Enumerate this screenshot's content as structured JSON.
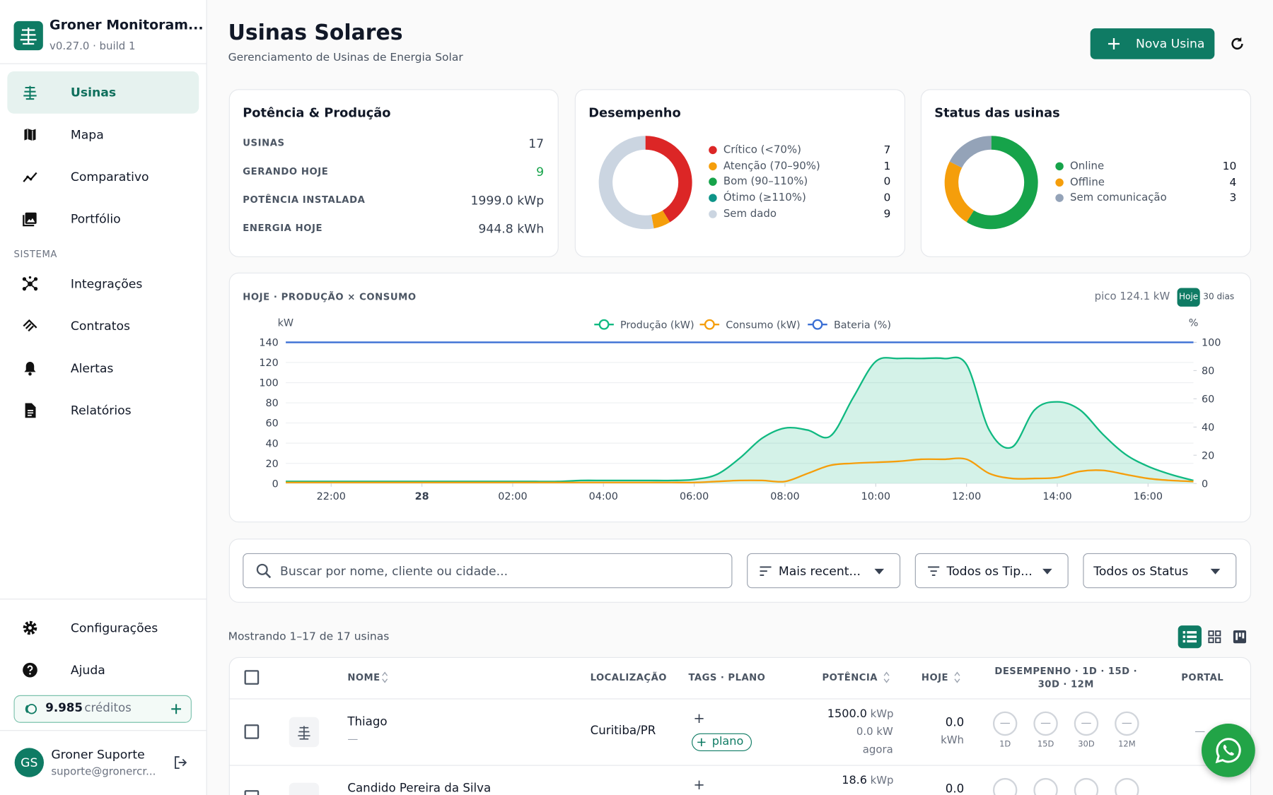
{
  "sidebar": {
    "app_name": "Groner Monitoram...",
    "version": "v0.27.0 · build 1",
    "nav": [
      "Usinas",
      "Mapa",
      "Comparativo",
      "Portfólio"
    ],
    "section": "SISTEMA",
    "system_nav": [
      "Integrações",
      "Contratos",
      "Alertas",
      "Relatórios"
    ],
    "bottom_nav": [
      "Configurações",
      "Ajuda"
    ],
    "credits": {
      "amount": "9.985",
      "label": "créditos"
    },
    "user": {
      "initials": "GS",
      "name": "Groner Suporte",
      "email": "suporte@gronercr..."
    }
  },
  "header": {
    "title": "Usinas Solares",
    "subtitle": "Gerenciamento de Usinas de Energia Solar",
    "button": "Nova Usina"
  },
  "power_card": {
    "title": "Potência & Produção",
    "rows": [
      {
        "label": "USINAS",
        "value": "17"
      },
      {
        "label": "GERANDO HOJE",
        "value": "9"
      },
      {
        "label": "POTÊNCIA INSTALADA",
        "value": "1999.0 kWp"
      },
      {
        "label": "ENERGIA HOJE",
        "value": "944.8 kWh"
      }
    ]
  },
  "performance_card": {
    "title": "Desempenho",
    "chart": {
      "type": "donut",
      "categories": [
        "Crítico (<70%)",
        "Atenção (70–90%)",
        "Bom (90–110%)",
        "Ótimo (≥110%)",
        "Sem dado"
      ],
      "values": [
        7,
        1,
        0,
        0,
        9
      ],
      "colors": [
        "#dc2626",
        "#f59e0b",
        "#16a34a",
        "#0d9488",
        "#cbd5e1"
      ]
    }
  },
  "status_card": {
    "title": "Status das usinas",
    "chart": {
      "type": "donut",
      "categories": [
        "Online",
        "Offline",
        "Sem comunicação"
      ],
      "values": [
        10,
        4,
        3
      ],
      "colors": [
        "#16a34a",
        "#f59e0b",
        "#94a3b8"
      ]
    }
  },
  "production_chart": {
    "type": "line",
    "title": "HOJE · PRODUÇÃO × CONSUMO",
    "peak": "pico 124.1 kW",
    "toggle": [
      "Hoje",
      "30 dias"
    ],
    "y_label": "kW",
    "y2_label": "%",
    "x": [
      -3,
      -2.5,
      -2,
      -1.5,
      -1,
      -0.5,
      0,
      0.5,
      1,
      1.5,
      2,
      2.5,
      3,
      3.5,
      4,
      4.5,
      5,
      5.5,
      6,
      6.5,
      7,
      7.5,
      8,
      8.5,
      9,
      9.5,
      10,
      10.5,
      11,
      11.5,
      12,
      12.5,
      13,
      13.5,
      14,
      14.5,
      15,
      15.5,
      16,
      16.5,
      17
    ],
    "xlim": [
      -3,
      17
    ],
    "xticks": [
      {
        "value": -2,
        "label": "22:00"
      },
      {
        "value": 0,
        "label": "28"
      },
      {
        "value": 2,
        "label": "02:00"
      },
      {
        "value": 4,
        "label": "04:00"
      },
      {
        "value": 6,
        "label": "06:00"
      },
      {
        "value": 8,
        "label": "08:00"
      },
      {
        "value": 10,
        "label": "10:00"
      },
      {
        "value": 12,
        "label": "12:00"
      },
      {
        "value": 14,
        "label": "14:00"
      },
      {
        "value": 16,
        "label": "16:00"
      }
    ],
    "ylim": [
      0,
      140
    ],
    "yticks": [
      0,
      20,
      40,
      60,
      80,
      100,
      120,
      140
    ],
    "y2lim": [
      0,
      100
    ],
    "y2ticks": [
      0,
      20,
      40,
      60,
      80,
      100
    ],
    "grid": true,
    "series": [
      {
        "name": "Produção (kW)",
        "color": "#10b981",
        "area": true,
        "values": [
          2,
          2,
          2,
          2,
          2,
          2,
          2,
          2,
          2,
          2,
          2,
          2,
          2,
          3,
          3,
          3,
          3,
          3,
          4,
          9,
          25,
          45,
          55,
          53,
          47,
          85,
          121,
          124,
          124,
          124,
          118,
          53,
          36,
          73,
          81,
          73,
          49,
          29,
          17,
          9,
          3
        ]
      },
      {
        "name": "Consumo (kW)",
        "color": "#f59e0b",
        "values": [
          1,
          1,
          1,
          1,
          1,
          1,
          1,
          1,
          1,
          1,
          1,
          1,
          1,
          1,
          1,
          1,
          1,
          1,
          1,
          2,
          3,
          3,
          2,
          10,
          18,
          20,
          21,
          22,
          24,
          24,
          24,
          10,
          5,
          5,
          6,
          12,
          13,
          9,
          5,
          3,
          2
        ]
      },
      {
        "name": "Bateria (%)",
        "color": "#3b6fd4",
        "axis": "y2",
        "values": [
          100,
          100,
          100,
          100,
          100,
          100,
          100,
          100,
          100,
          100,
          100,
          100,
          100,
          100,
          100,
          100,
          100,
          100,
          100,
          100,
          100,
          100,
          100,
          100,
          100,
          100,
          100,
          100,
          100,
          100,
          100,
          100,
          100,
          100,
          100,
          100,
          100,
          100,
          100,
          100,
          100
        ]
      }
    ]
  },
  "filters": {
    "search_placeholder": "Buscar por nome, cliente ou cidade...",
    "dropdowns": [
      "Mais recent...",
      "Todos os Tip...",
      "Todos os Status"
    ]
  },
  "table": {
    "summary": "Mostrando 1–17 de 17 usinas",
    "columns": [
      "NOME",
      "LOCALIZAÇÃO",
      "TAGS · PLANO",
      "POTÊNCIA",
      "HOJE",
      "DESEMPENHO · 1D · 15D · 30D · 12M",
      "PORTAL"
    ],
    "periods": [
      "1D",
      "15D",
      "30D",
      "12M"
    ],
    "rows": [
      {
        "name": "Thiago",
        "client": "—",
        "location": "Curitiba/PR",
        "tag_add": "+",
        "plan": "plano",
        "power": "1500.0",
        "power_unit": "kWp",
        "current": "0.0 kW",
        "updated": "agora",
        "today": "0.0",
        "today_unit": "kWh",
        "performance": [
          "—",
          "—",
          "—",
          "—"
        ],
        "portal": "—"
      },
      {
        "name": "Candido Pereira da Silva",
        "tag_add": "+",
        "power": "18.6",
        "power_unit": "kWp",
        "today": "0.0"
      }
    ]
  }
}
